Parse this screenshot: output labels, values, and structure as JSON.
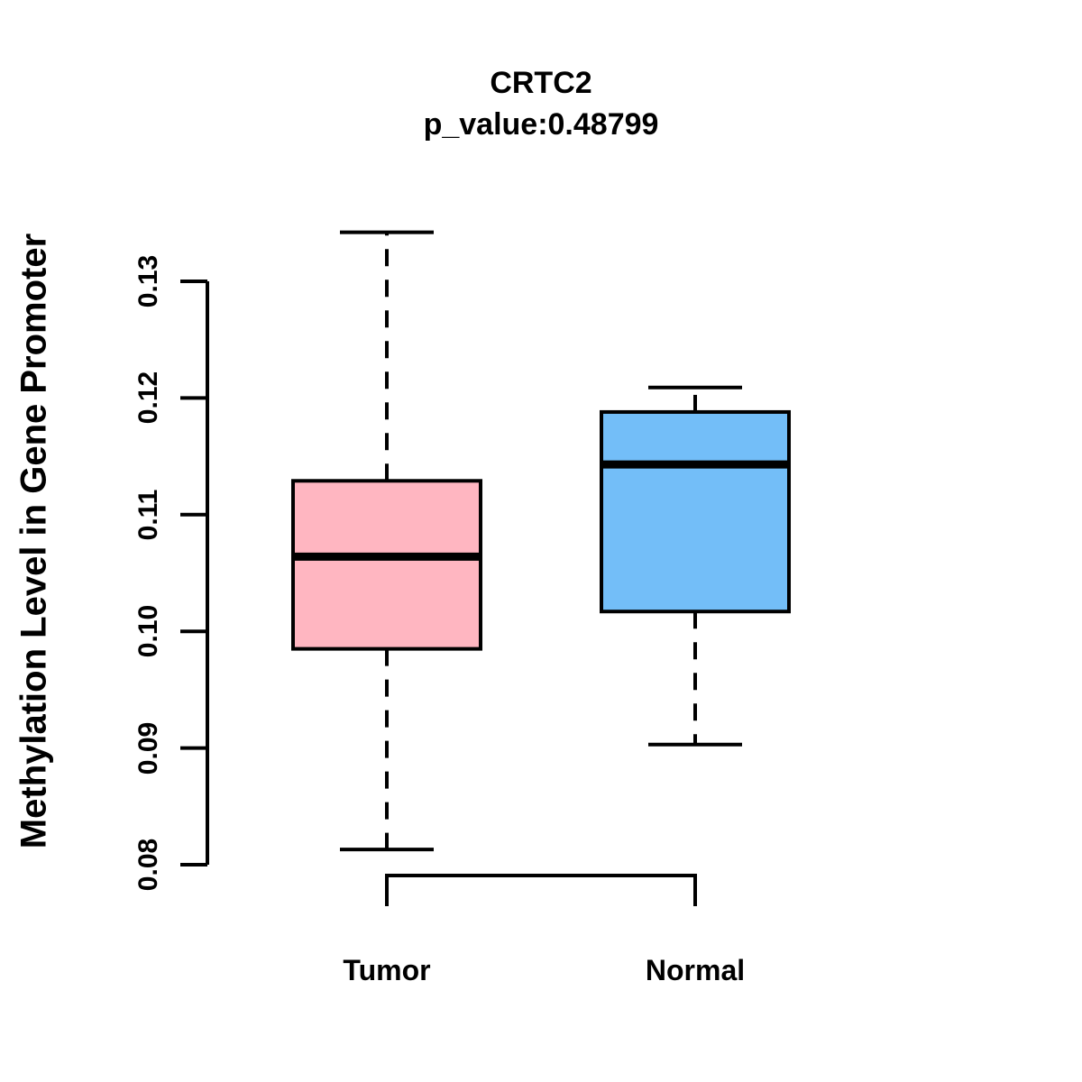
{
  "chart_data": {
    "type": "boxplot",
    "title": "CRTC2",
    "subtitle": "p_value:0.48799",
    "p_value": "0.48799",
    "ylabel": "Methylation Level in Gene Promoter",
    "xlabel": "",
    "categories": [
      "Tumor",
      "Normal"
    ],
    "series": [
      {
        "name": "Tumor",
        "whisker_low": 0.0813,
        "q1": 0.0985,
        "median": 0.1064,
        "q3": 0.1129,
        "whisker_high": 0.1342,
        "fill_color": "#FFB6C1"
      },
      {
        "name": "Normal",
        "whisker_low": 0.0903,
        "q1": 0.1017,
        "median": 0.1143,
        "q3": 0.1188,
        "whisker_high": 0.1209,
        "fill_color": "#73BEF8"
      }
    ],
    "y_ticks": [
      "0.08",
      "0.09",
      "0.10",
      "0.11",
      "0.12",
      "0.13"
    ],
    "ylim": [
      0.08,
      0.13
    ],
    "grid": "off",
    "legend": "none",
    "stroke_color": "#000000",
    "background_color": "#FFFFFF"
  }
}
